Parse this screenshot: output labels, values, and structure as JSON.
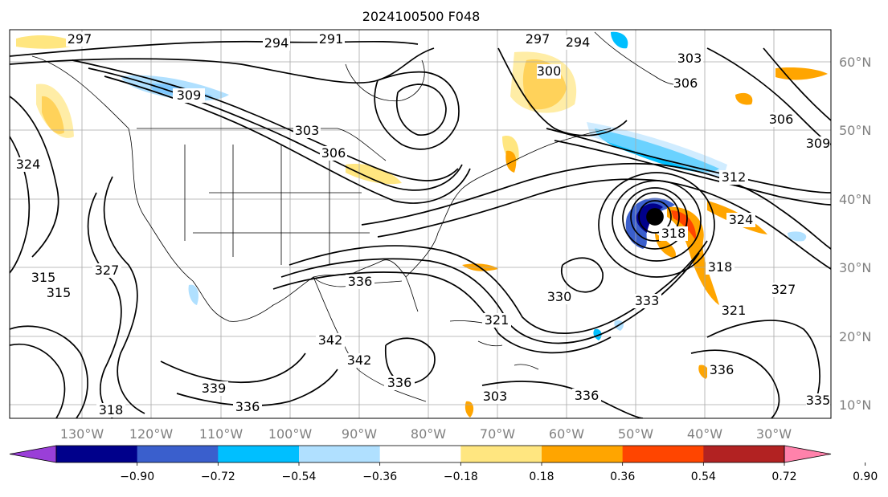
{
  "title": "2024100500 F048",
  "lon_labels": [
    "130°W",
    "120°W",
    "110°W",
    "100°W",
    "90°W",
    "80°W",
    "70°W",
    "60°W",
    "50°W",
    "40°W",
    "30°W"
  ],
  "lat_labels": [
    "60°N",
    "50°N",
    "40°N",
    "30°N",
    "20°N",
    "10°N"
  ],
  "contour_labels": [
    "297",
    "294",
    "291",
    "297",
    "294",
    "300",
    "303",
    "309",
    "303",
    "306",
    "306",
    "309",
    "312",
    "324",
    "318",
    "315",
    "327",
    "315",
    "336",
    "330",
    "333",
    "321",
    "321",
    "327",
    "342",
    "339",
    "336",
    "336",
    "318",
    "336",
    "336",
    "335",
    "303",
    "306",
    "324",
    "318",
    "342"
  ],
  "colorbar": {
    "ticks": [
      "−0.90",
      "−0.72",
      "−0.54",
      "−0.36",
      "−0.18",
      "0.18",
      "0.36",
      "0.54",
      "0.72",
      "0.90"
    ],
    "colors": [
      "#9a3fd8",
      "#00008b",
      "#3a5fcd",
      "#00bfff",
      "#b0e0ff",
      "#ffffff",
      "#ffe680",
      "#ffa500",
      "#ff4500",
      "#b22222",
      "#ff82ab"
    ]
  }
}
